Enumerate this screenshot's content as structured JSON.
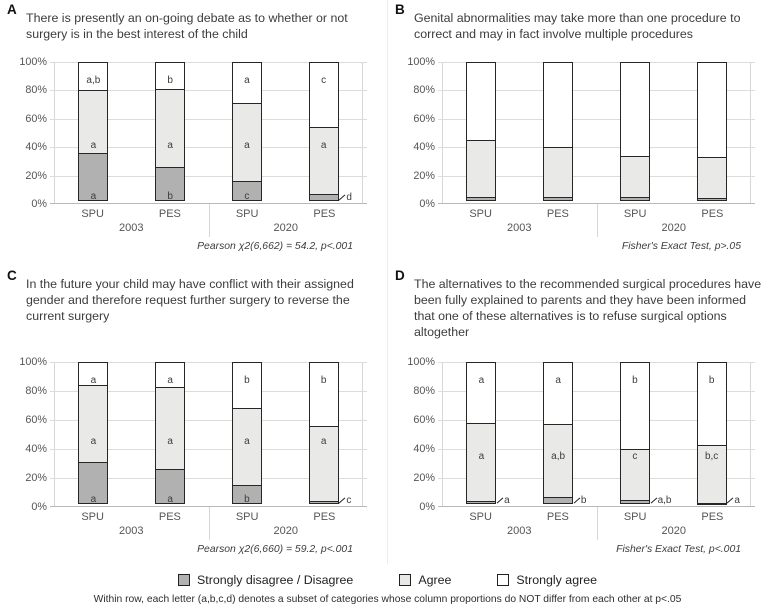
{
  "figure": {
    "yticks": [
      "100%",
      "80%",
      "60%",
      "40%",
      "20%",
      "0%"
    ],
    "legend": [
      {
        "label": "Strongly disagree / Disagree",
        "color": "#b1b1b1"
      },
      {
        "label": "Agree",
        "color": "#e9e9e7"
      },
      {
        "label": "Strongly agree",
        "color": "#ffffff"
      }
    ],
    "colors": {
      "disagree": "#b1b1b1",
      "agree": "#e9e9e7",
      "strongly_agree": "#ffffff",
      "bar_border": "#262626",
      "gridline": "#dcdcdc"
    },
    "note": "Within row, each letter (a,b,c,d) denotes a subset of categories whose column proportions do NOT differ from each other at p<.05"
  },
  "chart_data": [
    {
      "type": "bar",
      "subtype": "100%-stacked",
      "letter": "A",
      "title": "There is presently an on-going debate as to whether or not surgery is in the best interest of the child",
      "footnote": "Pearson χ2(6,662) = 54.2, p<.001",
      "sites": [
        "SPU",
        "PES",
        "SPU",
        "PES"
      ],
      "years": [
        "2003",
        "2020"
      ],
      "ylim": [
        0,
        100
      ],
      "series": [
        {
          "name": "Strongly disagree / Disagree",
          "values": [
            34,
            24,
            14,
            5
          ]
        },
        {
          "name": "Agree",
          "values": [
            45,
            56,
            56,
            48
          ]
        },
        {
          "name": "Strongly agree",
          "values": [
            21,
            20,
            30,
            47
          ]
        }
      ],
      "letters": {
        "disagree": [
          "a",
          "b",
          "c",
          "d"
        ],
        "agree": [
          "a",
          "a",
          "a",
          "a"
        ],
        "strongly_agree": [
          "a,b",
          "b",
          "a",
          "c"
        ]
      }
    },
    {
      "type": "bar",
      "subtype": "100%-stacked",
      "letter": "B",
      "title": "Genital abnormalities may take more than one procedure to correct and may in fact involve multiple procedures",
      "footnote": "Fisher's Exact Test, p>.05",
      "sites": [
        "SPU",
        "PES",
        "SPU",
        "PES"
      ],
      "years": [
        "2003",
        "2020"
      ],
      "ylim": [
        0,
        100
      ],
      "series": [
        {
          "name": "Strongly disagree / Disagree",
          "values": [
            3,
            3,
            3,
            2
          ]
        },
        {
          "name": "Agree",
          "values": [
            41,
            36,
            30,
            30
          ]
        },
        {
          "name": "Strongly agree",
          "values": [
            56,
            61,
            67,
            68
          ]
        }
      ]
    },
    {
      "type": "bar",
      "subtype": "100%-stacked",
      "letter": "C",
      "title": "In the future your child may have conflict with their assigned gender and therefore request further surgery to reverse the current surgery",
      "footnote": "Pearson χ2(6,660) = 59.2, p<.001",
      "sites": [
        "SPU",
        "PES",
        "SPU",
        "PES"
      ],
      "years": [
        "2003",
        "2020"
      ],
      "ylim": [
        0,
        100
      ],
      "series": [
        {
          "name": "Strongly disagree / Disagree",
          "values": [
            29,
            24,
            13,
            2
          ]
        },
        {
          "name": "Agree",
          "values": [
            54,
            58,
            54,
            53
          ]
        },
        {
          "name": "Strongly agree",
          "values": [
            17,
            18,
            33,
            45
          ]
        }
      ],
      "letters": {
        "disagree": [
          "a",
          "a",
          "b",
          "c"
        ],
        "agree": [
          "a",
          "a",
          "a",
          "a"
        ],
        "strongly_agree": [
          "a",
          "a",
          "b",
          "b"
        ]
      }
    },
    {
      "type": "bar",
      "subtype": "100%-stacked",
      "letter": "D",
      "title": "The alternatives to the recommended surgical procedures have been fully explained to parents and they have been informed that one of these alternatives is to refuse surgical options altogether",
      "footnote": "Fisher's Exact Test, p<.001",
      "sites": [
        "SPU",
        "PES",
        "SPU",
        "PES"
      ],
      "years": [
        "2003",
        "2020"
      ],
      "ylim": [
        0,
        100
      ],
      "series": [
        {
          "name": "Strongly disagree / Disagree",
          "values": [
            2,
            5,
            3,
            1
          ]
        },
        {
          "name": "Agree",
          "values": [
            55,
            51,
            36,
            41
          ]
        },
        {
          "name": "Strongly agree",
          "values": [
            43,
            44,
            61,
            58
          ]
        }
      ],
      "letters": {
        "disagree": [
          "a",
          "b",
          "a,b",
          "a"
        ],
        "agree": [
          "a",
          "a,b",
          "c",
          "b,c"
        ],
        "strongly_agree": [
          "a",
          "a",
          "b",
          "b"
        ]
      }
    }
  ]
}
